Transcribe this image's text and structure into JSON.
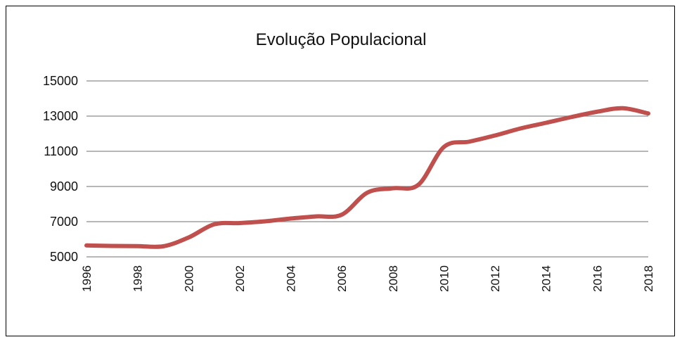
{
  "chart_data": {
    "type": "line",
    "title": "Evolução Populacional",
    "xlabel": "",
    "ylabel": "",
    "ylim": [
      5000,
      15000
    ],
    "y_ticks": [
      "5000",
      "7000",
      "9000",
      "11000",
      "13000",
      "15000"
    ],
    "x_ticks": [
      "1996",
      "1998",
      "2000",
      "2002",
      "2004",
      "2006",
      "2008",
      "2010",
      "2012",
      "2014",
      "2016",
      "2018"
    ],
    "x": [
      1996,
      1997,
      1998,
      1999,
      2000,
      2001,
      2002,
      2003,
      2004,
      2005,
      2006,
      2007,
      2008,
      2009,
      2010,
      2011,
      2012,
      2013,
      2014,
      2015,
      2016,
      2017,
      2018
    ],
    "series": [
      {
        "values": [
          5650,
          5620,
          5610,
          5600,
          6100,
          6850,
          6920,
          7020,
          7180,
          7300,
          7400,
          8650,
          8900,
          9100,
          11250,
          11550,
          11900,
          12300,
          12620,
          12950,
          13250,
          13450,
          13150
        ],
        "color": "#c0504d"
      }
    ],
    "grid": true,
    "legend": "none"
  }
}
